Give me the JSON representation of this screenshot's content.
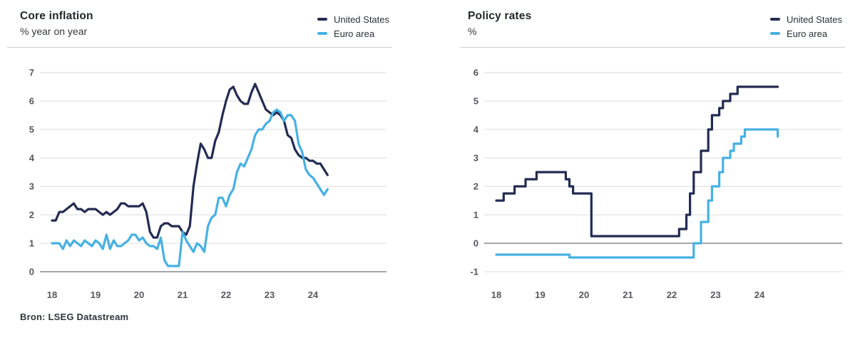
{
  "source_note": "Bron: LSEG Datastream",
  "colors": {
    "united_states": "#242b52",
    "euro_area": "#46b1e3",
    "grid": "#dadbde",
    "axis_strong": "#6c6f75",
    "tick_text": "#55585e"
  },
  "chart_data": [
    {
      "type": "line",
      "title": "Core inflation",
      "subtitle": "% year on year",
      "legend_position": "top-right",
      "grid": true,
      "step": false,
      "x_start_year": 2018,
      "x_interval": "monthly",
      "xticks": [
        18,
        19,
        20,
        21,
        22,
        23,
        24
      ],
      "ylim": [
        0,
        7
      ],
      "yticks": [
        7,
        6,
        5,
        4,
        3,
        2,
        1,
        0
      ],
      "zero_line": 0,
      "series": [
        {
          "name": "United States",
          "color_key": "united_states",
          "values": [
            1.8,
            1.8,
            2.1,
            2.1,
            2.2,
            2.3,
            2.4,
            2.2,
            2.2,
            2.1,
            2.2,
            2.2,
            2.2,
            2.1,
            2.0,
            2.1,
            2.0,
            2.1,
            2.2,
            2.4,
            2.4,
            2.3,
            2.3,
            2.3,
            2.3,
            2.4,
            2.1,
            1.4,
            1.2,
            1.2,
            1.6,
            1.7,
            1.7,
            1.6,
            1.6,
            1.6,
            1.4,
            1.3,
            1.6,
            3.0,
            3.8,
            4.5,
            4.3,
            4.0,
            4.0,
            4.6,
            4.9,
            5.5,
            6.0,
            6.4,
            6.5,
            6.2,
            6.0,
            5.9,
            5.9,
            6.3,
            6.6,
            6.3,
            6.0,
            5.7,
            5.6,
            5.5,
            5.6,
            5.5,
            5.3,
            4.8,
            4.7,
            4.3,
            4.1,
            4.0,
            4.0,
            3.9,
            3.9,
            3.8,
            3.8,
            3.6,
            3.4
          ]
        },
        {
          "name": "Euro area",
          "color_key": "euro_area",
          "values": [
            1.0,
            1.0,
            1.0,
            0.8,
            1.1,
            0.9,
            1.1,
            1.0,
            0.9,
            1.1,
            1.0,
            0.9,
            1.1,
            1.0,
            0.8,
            1.3,
            0.8,
            1.1,
            0.9,
            0.9,
            1.0,
            1.1,
            1.3,
            1.3,
            1.1,
            1.2,
            1.0,
            0.9,
            0.9,
            0.8,
            1.2,
            0.4,
            0.2,
            0.2,
            0.2,
            0.2,
            1.4,
            1.1,
            0.9,
            0.7,
            1.0,
            0.9,
            0.7,
            1.6,
            1.9,
            2.0,
            2.6,
            2.6,
            2.3,
            2.7,
            2.9,
            3.5,
            3.8,
            3.7,
            4.0,
            4.3,
            4.8,
            5.0,
            5.0,
            5.2,
            5.3,
            5.6,
            5.7,
            5.6,
            5.3,
            5.5,
            5.5,
            5.3,
            4.5,
            4.2,
            3.6,
            3.4,
            3.3,
            3.1,
            2.9,
            2.7,
            2.9
          ]
        }
      ]
    },
    {
      "type": "line",
      "title": "Policy rates",
      "subtitle": "%",
      "legend_position": "top-right",
      "grid": true,
      "step": true,
      "x_start_year": 2018,
      "x_interval": "monthly",
      "xticks": [
        18,
        19,
        20,
        21,
        22,
        23,
        24
      ],
      "ylim": [
        -1,
        6
      ],
      "yticks": [
        6,
        5,
        4,
        3,
        2,
        1,
        0,
        -1
      ],
      "zero_line": 0,
      "series": [
        {
          "name": "United States",
          "color_key": "united_states",
          "values": [
            1.5,
            1.5,
            1.75,
            1.75,
            1.75,
            2,
            2,
            2,
            2.25,
            2.25,
            2.25,
            2.5,
            2.5,
            2.5,
            2.5,
            2.5,
            2.5,
            2.5,
            2.5,
            2.25,
            2,
            1.75,
            1.75,
            1.75,
            1.75,
            1.75,
            0.25,
            0.25,
            0.25,
            0.25,
            0.25,
            0.25,
            0.25,
            0.25,
            0.25,
            0.25,
            0.25,
            0.25,
            0.25,
            0.25,
            0.25,
            0.25,
            0.25,
            0.25,
            0.25,
            0.25,
            0.25,
            0.25,
            0.25,
            0.25,
            0.5,
            0.5,
            1,
            1.75,
            2.5,
            2.5,
            3.25,
            3.25,
            4,
            4.5,
            4.5,
            4.75,
            5,
            5,
            5.25,
            5.25,
            5.5,
            5.5,
            5.5,
            5.5,
            5.5,
            5.5,
            5.5,
            5.5,
            5.5,
            5.5,
            5.5,
            5.5
          ]
        },
        {
          "name": "Euro area",
          "color_key": "euro_area",
          "values": [
            -0.4,
            -0.4,
            -0.4,
            -0.4,
            -0.4,
            -0.4,
            -0.4,
            -0.4,
            -0.4,
            -0.4,
            -0.4,
            -0.4,
            -0.4,
            -0.4,
            -0.4,
            -0.4,
            -0.4,
            -0.4,
            -0.4,
            -0.4,
            -0.5,
            -0.5,
            -0.5,
            -0.5,
            -0.5,
            -0.5,
            -0.5,
            -0.5,
            -0.5,
            -0.5,
            -0.5,
            -0.5,
            -0.5,
            -0.5,
            -0.5,
            -0.5,
            -0.5,
            -0.5,
            -0.5,
            -0.5,
            -0.5,
            -0.5,
            -0.5,
            -0.5,
            -0.5,
            -0.5,
            -0.5,
            -0.5,
            -0.5,
            -0.5,
            -0.5,
            -0.5,
            -0.5,
            -0.5,
            0,
            0,
            0.75,
            0.75,
            1.5,
            2,
            2,
            2.5,
            3,
            3,
            3.25,
            3.5,
            3.5,
            3.75,
            4,
            4,
            4,
            4,
            4,
            4,
            4,
            4,
            4,
            3.75
          ]
        }
      ]
    }
  ]
}
